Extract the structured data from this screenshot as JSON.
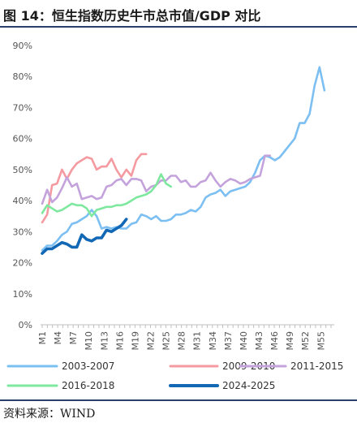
{
  "header": {
    "title": "图 14：恒生指数历史牛市总市值/GDP 对比"
  },
  "footer": {
    "source": "资料来源：WIND"
  },
  "chart_data": {
    "type": "line",
    "title": "",
    "xlabel": "",
    "ylabel": "",
    "ylim": [
      0,
      90
    ],
    "yticks": [
      "0%",
      "10%",
      "20%",
      "30%",
      "40%",
      "50%",
      "60%",
      "70%",
      "80%",
      "90%"
    ],
    "xticks": [
      "M1",
      "M4",
      "M7",
      "M10",
      "M13",
      "M16",
      "M19",
      "M22",
      "M25",
      "M28",
      "M31",
      "M34",
      "M37",
      "M40",
      "M43",
      "M46",
      "M49",
      "M52",
      "M55"
    ],
    "x_range": [
      1,
      57
    ],
    "grid": false,
    "legend_position": "bottom",
    "series": [
      {
        "name": "2003-2007",
        "color": "#7cbff2",
        "values": [
          24,
          25.5,
          25.5,
          27,
          29,
          30,
          32.5,
          33,
          34,
          35,
          37,
          35,
          31,
          31.5,
          31,
          31.5,
          31,
          31,
          32.5,
          33,
          35.5,
          35,
          34,
          35,
          33.5,
          33.5,
          34,
          35.5,
          35.5,
          36,
          37,
          36.5,
          38,
          41,
          42,
          42.5,
          43.5,
          41.5,
          43,
          43.5,
          44,
          44.5,
          46,
          49,
          53,
          54.5,
          54,
          53,
          54,
          56,
          58,
          60,
          65,
          65,
          68,
          77,
          83,
          75.5
        ]
      },
      {
        "name": "2009-2010",
        "color": "#f49aa0",
        "values": [
          33,
          35.5,
          45,
          45.5,
          50,
          47,
          50,
          52,
          53,
          54,
          53.5,
          50,
          51,
          51,
          53.5,
          50,
          47.5,
          50,
          48,
          53,
          55,
          55
        ]
      },
      {
        "name": "2011-2015",
        "color": "#c4a3dc",
        "values": [
          39,
          43.5,
          39.5,
          41,
          44,
          47.5,
          44.5,
          45.5,
          40.5,
          41,
          41.5,
          40.5,
          41,
          44.5,
          45,
          46.5,
          47,
          45,
          47,
          47,
          46.5,
          43,
          44.5,
          45,
          46.5,
          46.5,
          48,
          48,
          46,
          46.5,
          44.5,
          44.5,
          46,
          46.5,
          49,
          46.5,
          44.5,
          46,
          47,
          46.5,
          45.5,
          46,
          47,
          47.5,
          48,
          54.5,
          54.5
        ]
      },
      {
        "name": "2016-2018",
        "color": "#7de89e",
        "values": [
          36,
          38.5,
          37.5,
          36.5,
          37,
          38,
          39,
          38.5,
          38.5,
          37.5,
          35,
          37,
          37.5,
          38,
          38,
          38.5,
          38.5,
          39,
          40,
          41,
          41.5,
          42,
          43,
          45,
          48.5,
          45.5,
          44.5
        ]
      },
      {
        "name": "2024-2025",
        "color": "#1268b5",
        "values": [
          23,
          24.5,
          24.5,
          25.5,
          26.5,
          26,
          25,
          25,
          29,
          27.5,
          27,
          28,
          28,
          30.5,
          30,
          31,
          32,
          34
        ]
      }
    ]
  }
}
